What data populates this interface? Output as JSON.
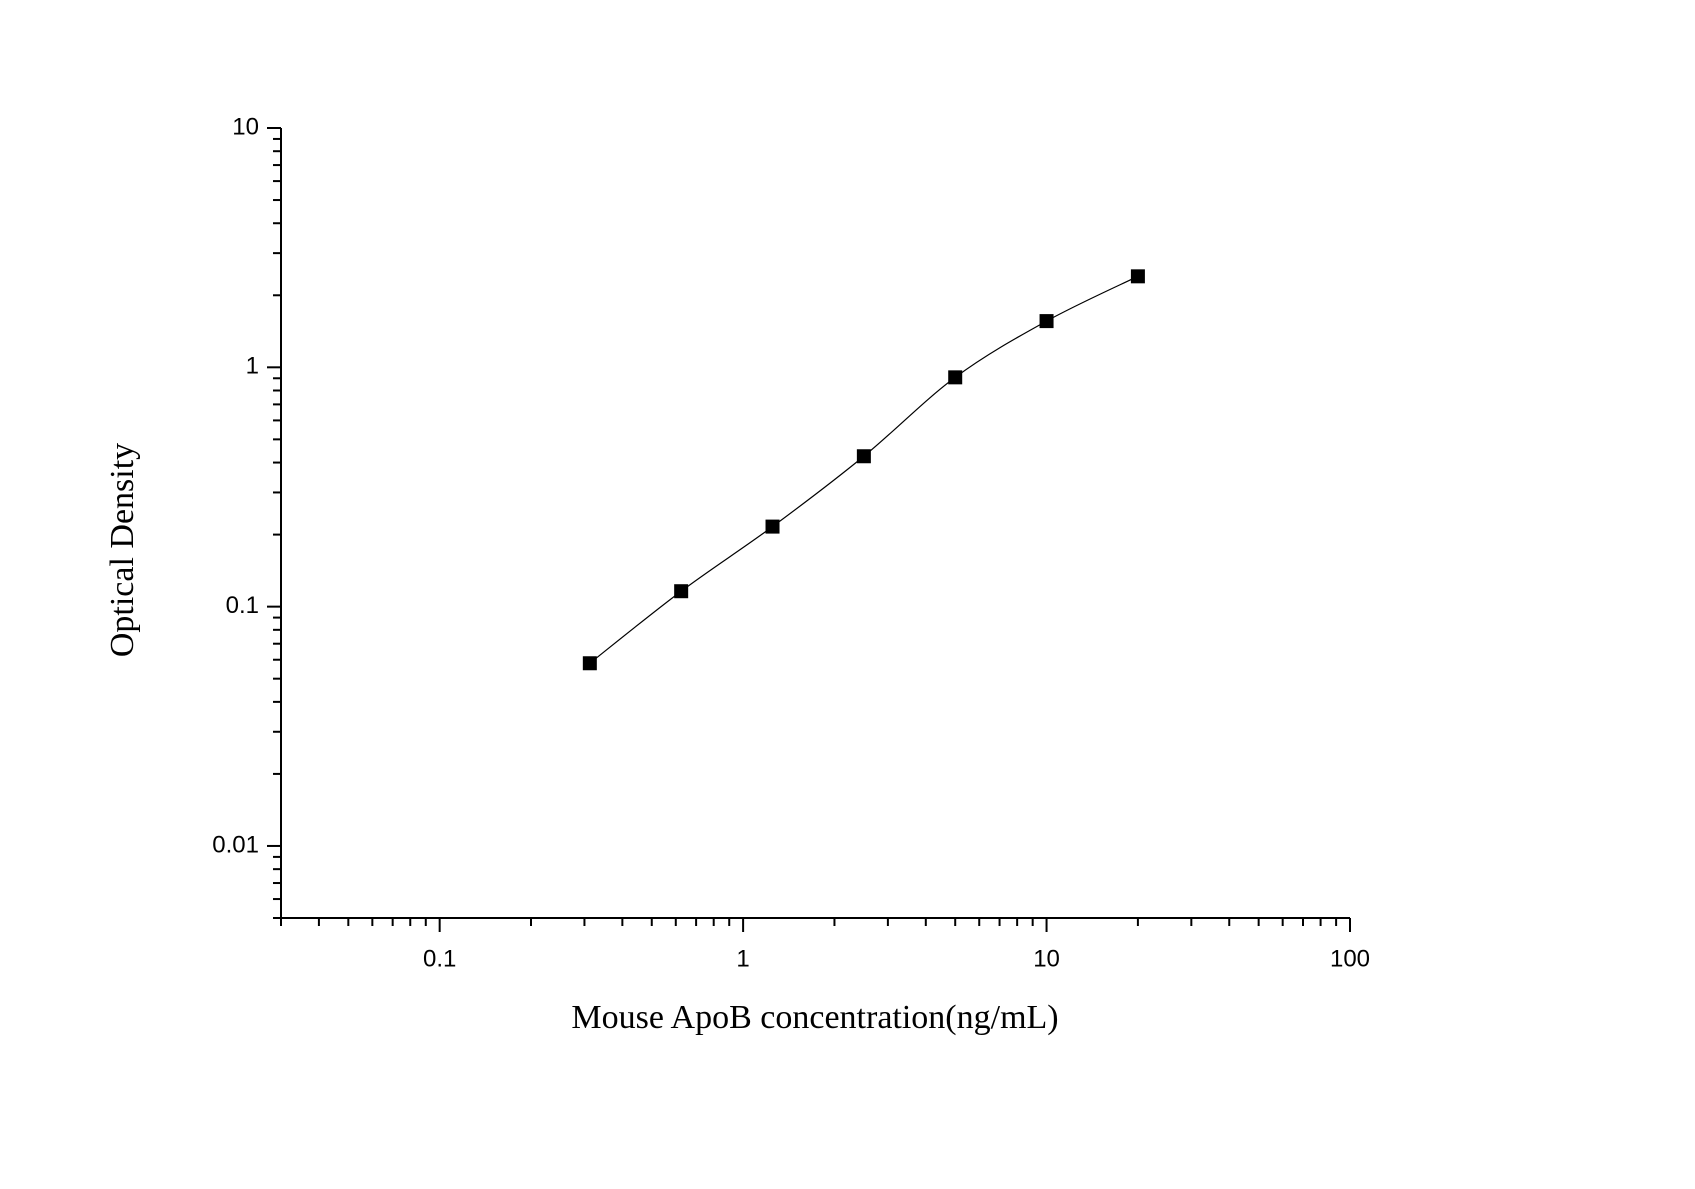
{
  "chart_data": {
    "type": "scatter",
    "x_label": "Mouse ApoB concentration(ng/mL)",
    "y_label": "Optical Density",
    "x": [
      0.3125,
      0.625,
      1.25,
      2.5,
      5,
      10,
      20
    ],
    "series": [
      {
        "color": "#000000",
        "values": [
          0.058,
          0.116,
          0.216,
          0.425,
          0.908,
          1.56,
          2.4
        ]
      }
    ],
    "x_log": true,
    "y_log": true,
    "xlim": [
      0.03,
      100
    ],
    "ylim": [
      0.005,
      10
    ],
    "xticks": [
      0.1,
      1,
      10,
      100
    ],
    "yticks": [
      0.01,
      0.1,
      1,
      10
    ],
    "xminor_ticks": [
      0.03,
      0.04,
      0.05,
      0.06,
      0.07,
      0.08,
      0.09,
      0.2,
      0.3,
      0.4,
      0.5,
      0.6,
      0.7,
      0.8,
      0.9,
      2,
      3,
      4,
      5,
      6,
      7,
      8,
      9,
      20,
      30,
      40,
      50,
      60,
      70,
      80,
      90
    ],
    "yminor_ticks": [
      0.005,
      0.006,
      0.007,
      0.008,
      0.009,
      0.02,
      0.03,
      0.04,
      0.05,
      0.06,
      0.07,
      0.08,
      0.09,
      0.2,
      0.3,
      0.4,
      0.5,
      0.6,
      0.7,
      0.8,
      0.9,
      2,
      3,
      4,
      5,
      6,
      7,
      8,
      9
    ],
    "fit_curve": true
  }
}
